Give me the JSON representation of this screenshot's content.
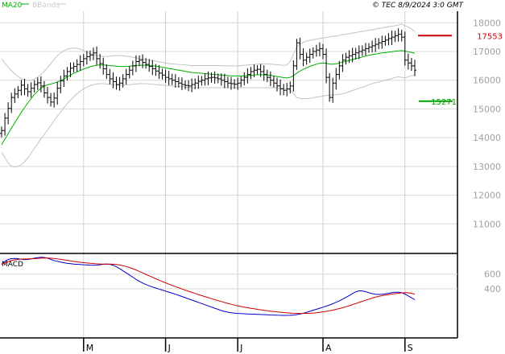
{
  "header": {
    "credit": "© TEC 8/9/2024 3:0 GMT",
    "legend": [
      {
        "label": "MA20",
        "color": "#00b000"
      },
      {
        "label": "BBands",
        "color": "#c8c8c8"
      }
    ]
  },
  "chart_data": [
    {
      "type": "line",
      "panel": "price",
      "title": "",
      "ylim": [
        10000,
        18400
      ],
      "y_ticks": [
        "18000",
        "17000",
        "16000",
        "15000",
        "14000",
        "13000",
        "12000",
        "11000"
      ],
      "y_tick_values": [
        18000,
        17000,
        16000,
        15000,
        14000,
        13000,
        12000,
        11000
      ],
      "x_labels": [
        "M",
        "J",
        "J",
        "A",
        "S"
      ],
      "x_label_index": [
        25,
        50,
        72,
        98,
        123
      ],
      "n_bars": 127,
      "series": [
        {
          "name": "MA20",
          "color": "#00b000"
        },
        {
          "name": "BBands",
          "color": "#c8c8c8"
        }
      ],
      "close": [
        14250,
        14680,
        15020,
        15400,
        15520,
        15650,
        15830,
        15700,
        15600,
        15720,
        15850,
        15910,
        15800,
        15560,
        15400,
        15240,
        15380,
        15720,
        15980,
        16150,
        16300,
        16420,
        16480,
        16550,
        16650,
        16750,
        16820,
        16880,
        16950,
        16750,
        16580,
        16400,
        16200,
        16050,
        15950,
        15850,
        15900,
        16050,
        16200,
        16350,
        16500,
        16650,
        16700,
        16620,
        16550,
        16480,
        16400,
        16320,
        16250,
        16180,
        16100,
        16050,
        16000,
        15950,
        15900,
        15850,
        15820,
        15800,
        15850,
        15900,
        15960,
        16000,
        16050,
        16080,
        16100,
        16080,
        16050,
        16000,
        15950,
        15900,
        15880,
        15860,
        15900,
        16000,
        16100,
        16200,
        16300,
        16350,
        16380,
        16300,
        16200,
        16100,
        16000,
        15900,
        15800,
        15700,
        15650,
        15700,
        15800,
        16500,
        17300,
        16900,
        16700,
        16800,
        16900,
        17000,
        17050,
        17100,
        16900,
        16100,
        15400,
        15900,
        16200,
        16500,
        16700,
        16800,
        16850,
        16900,
        16950,
        17000,
        17050,
        17100,
        17150,
        17200,
        17250,
        17300,
        17350,
        17400,
        17450,
        17500,
        17550,
        17600,
        17500,
        16700,
        16600,
        16500,
        16350
      ],
      "ma20": [
        13760,
        13950,
        14140,
        14330,
        14520,
        14700,
        14880,
        15050,
        15210,
        15360,
        15500,
        15620,
        15720,
        15790,
        15840,
        15870,
        15900,
        15940,
        15990,
        16050,
        16110,
        16180,
        16240,
        16290,
        16340,
        16390,
        16430,
        16470,
        16500,
        16520,
        16530,
        16530,
        16520,
        16510,
        16500,
        16490,
        16480,
        16480,
        16480,
        16490,
        16500,
        16510,
        16520,
        16520,
        16520,
        16510,
        16500,
        16490,
        16470,
        16450,
        16430,
        16410,
        16390,
        16370,
        16350,
        16330,
        16310,
        16290,
        16270,
        16260,
        16250,
        16240,
        16230,
        16220,
        16210,
        16200,
        16190,
        16180,
        16170,
        16160,
        16150,
        16150,
        16150,
        16150,
        16150,
        16160,
        16170,
        16180,
        16190,
        16190,
        16190,
        16180,
        16170,
        16150,
        16130,
        16110,
        16090,
        16080,
        16100,
        16160,
        16250,
        16320,
        16380,
        16430,
        16480,
        16520,
        16560,
        16590,
        16600,
        16590,
        16560,
        16560,
        16570,
        16600,
        16630,
        16660,
        16690,
        16720,
        16750,
        16780,
        16810,
        16840,
        16870,
        16890,
        16910,
        16930,
        16950,
        16960,
        16980,
        16990,
        17010,
        17020,
        17030,
        17010,
        16990,
        16970,
        16940
      ],
      "bb_upper": [
        16750,
        16600,
        16460,
        16330,
        16220,
        16130,
        16060,
        16010,
        15990,
        16000,
        16040,
        16110,
        16200,
        16310,
        16440,
        16580,
        16720,
        16850,
        16950,
        17030,
        17080,
        17110,
        17120,
        17110,
        17080,
        17030,
        16980,
        16930,
        16890,
        16860,
        16840,
        16830,
        16830,
        16840,
        16850,
        16860,
        16860,
        16850,
        16840,
        16820,
        16800,
        16780,
        16760,
        16740,
        16720,
        16700,
        16680,
        16660,
        16640,
        16620,
        16600,
        16580,
        16570,
        16560,
        16550,
        16540,
        16530,
        16520,
        16510,
        16510,
        16510,
        16510,
        16510,
        16510,
        16510,
        16510,
        16510,
        16510,
        16500,
        16500,
        16500,
        16500,
        16500,
        16510,
        16520,
        16530,
        16540,
        16550,
        16560,
        16570,
        16570,
        16570,
        16560,
        16550,
        16540,
        16530,
        16520,
        16530,
        16650,
        16900,
        17150,
        17260,
        17320,
        17360,
        17390,
        17410,
        17430,
        17450,
        17470,
        17490,
        17510,
        17530,
        17540,
        17560,
        17580,
        17600,
        17620,
        17640,
        17660,
        17680,
        17700,
        17720,
        17740,
        17760,
        17780,
        17800,
        17820,
        17840,
        17860,
        17880,
        17900,
        17920,
        17960,
        17900,
        17850,
        17780,
        17700
      ],
      "bb_lower": [
        13500,
        13300,
        13120,
        13010,
        12980,
        13000,
        13060,
        13160,
        13300,
        13460,
        13630,
        13800,
        13960,
        14110,
        14270,
        14430,
        14590,
        14750,
        14900,
        15040,
        15180,
        15310,
        15430,
        15530,
        15620,
        15700,
        15760,
        15810,
        15850,
        15870,
        15880,
        15880,
        15870,
        15860,
        15850,
        15840,
        15830,
        15830,
        15840,
        15850,
        15860,
        15870,
        15880,
        15880,
        15880,
        15870,
        15860,
        15850,
        15840,
        15830,
        15820,
        15810,
        15800,
        15790,
        15780,
        15770,
        15760,
        15750,
        15740,
        15740,
        15740,
        15740,
        15740,
        15740,
        15740,
        15740,
        15740,
        15740,
        15740,
        15740,
        15740,
        15740,
        15740,
        15740,
        15740,
        15740,
        15740,
        15740,
        15740,
        15740,
        15740,
        15740,
        15740,
        15740,
        15730,
        15720,
        15710,
        15700,
        15660,
        15550,
        15400,
        15370,
        15360,
        15360,
        15370,
        15390,
        15410,
        15430,
        15450,
        15470,
        15480,
        15490,
        15500,
        15510,
        15530,
        15560,
        15600,
        15640,
        15680,
        15720,
        15760,
        15800,
        15840,
        15880,
        15910,
        15940,
        15970,
        16000,
        16030,
        16060,
        16090,
        16120,
        16100,
        16080,
        16120,
        16160,
        16180
      ],
      "levels": [
        {
          "value": 17553,
          "label": "17553",
          "color": "#cc0000"
        },
        {
          "value": 15271,
          "label": "15271",
          "color": "#00a000"
        }
      ]
    },
    {
      "type": "line",
      "panel": "macd",
      "title": "MACD",
      "ylim": [
        -250,
        850
      ],
      "y_ticks": [
        "600",
        "400"
      ],
      "y_tick_values": [
        600,
        400
      ],
      "series": [
        {
          "name": "MACD",
          "color": "#0000cc",
          "values": [
            735,
            775,
            800,
            812,
            815,
            812,
            805,
            797,
            800,
            808,
            818,
            825,
            830,
            828,
            818,
            802,
            786,
            775,
            765,
            755,
            749,
            743,
            738,
            734,
            731,
            728,
            726,
            724,
            722,
            723,
            728,
            734,
            737,
            733,
            722,
            700,
            675,
            645,
            618,
            588,
            558,
            528,
            502,
            478,
            458,
            440,
            424,
            410,
            396,
            382,
            368,
            354,
            340,
            325,
            310,
            294,
            278,
            262,
            246,
            230,
            214,
            198,
            182,
            166,
            150,
            134,
            118,
            102,
            90,
            80,
            72,
            66,
            62,
            60,
            58,
            56,
            54,
            52,
            50,
            48,
            46,
            44,
            42,
            40,
            38,
            37,
            36,
            36,
            37,
            40,
            46,
            55,
            66,
            78,
            92,
            106,
            120,
            134,
            148,
            162,
            178,
            196,
            215,
            235,
            258,
            282,
            308,
            334,
            358,
            372,
            370,
            360,
            345,
            333,
            325,
            322,
            324,
            330,
            338,
            346,
            352,
            354,
            346,
            328,
            302,
            276,
            250
          ]
        },
        {
          "name": "Signal",
          "color": "#cc0000",
          "values": [
            735,
            755,
            772,
            785,
            795,
            802,
            806,
            807,
            808,
            810,
            812,
            815,
            818,
            820,
            820,
            818,
            814,
            808,
            802,
            795,
            788,
            781,
            774,
            768,
            762,
            757,
            752,
            748,
            744,
            741,
            739,
            738,
            738,
            738,
            736,
            732,
            725,
            716,
            704,
            690,
            674,
            656,
            637,
            617,
            597,
            577,
            557,
            537,
            518,
            499,
            481,
            463,
            446,
            429,
            413,
            397,
            381,
            366,
            351,
            336,
            321,
            307,
            293,
            279,
            265,
            251,
            238,
            225,
            212,
            200,
            188,
            177,
            167,
            158,
            149,
            141,
            133,
            126,
            119,
            112,
            106,
            100,
            94,
            89,
            84,
            79,
            75,
            71,
            68,
            65,
            63,
            62,
            62,
            63,
            65,
            68,
            72,
            78,
            84,
            91,
            99,
            108,
            118,
            129,
            141,
            154,
            168,
            183,
            198,
            213,
            228,
            243,
            258,
            272,
            285,
            296,
            305,
            313,
            320,
            327,
            333,
            338,
            343,
            346,
            345,
            338,
            324
          ]
        }
      ]
    }
  ]
}
